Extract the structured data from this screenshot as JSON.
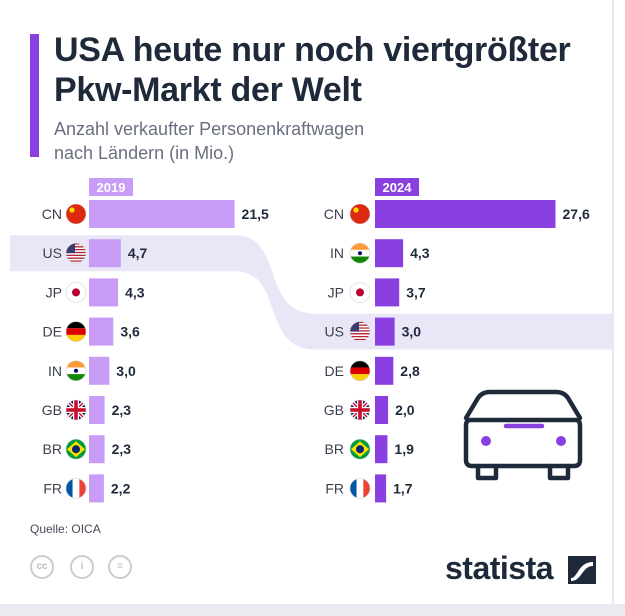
{
  "header": {
    "title_line1": "USA heute nur noch viertgrößter",
    "title_line2": "Pkw-Markt der Welt",
    "subtitle_line1": "Anzahl verkaufter Personenkraftwagen",
    "subtitle_line2": "nach Ländern (in Mio.)"
  },
  "colors": {
    "bar_2019": "#c89cf7",
    "bar_2024": "#8a3fe0",
    "highlight": "#e9e6f7",
    "text": "#1e2a3a"
  },
  "chart_data": [
    {
      "type": "bar",
      "orientation": "horizontal",
      "year": "2019",
      "categories": [
        "CN",
        "US",
        "JP",
        "DE",
        "IN",
        "GB",
        "BR",
        "FR"
      ],
      "values": [
        "21,5",
        "4,7",
        "4,3",
        "3,6",
        "3,0",
        "2,3",
        "2,3",
        "2,2"
      ]
    },
    {
      "type": "bar",
      "orientation": "horizontal",
      "year": "2024",
      "categories": [
        "CN",
        "IN",
        "JP",
        "US",
        "DE",
        "GB",
        "BR",
        "FR"
      ],
      "values": [
        "27,6",
        "4,3",
        "3,7",
        "3,0",
        "2,8",
        "2,0",
        "1,9",
        "1,7"
      ]
    }
  ],
  "highlight_country": "US",
  "illustration": "car-icon",
  "footer": {
    "source": "Quelle: OICA",
    "logo": "statista",
    "license_icons": [
      "cc-icon",
      "by-icon",
      "nd-icon"
    ]
  }
}
